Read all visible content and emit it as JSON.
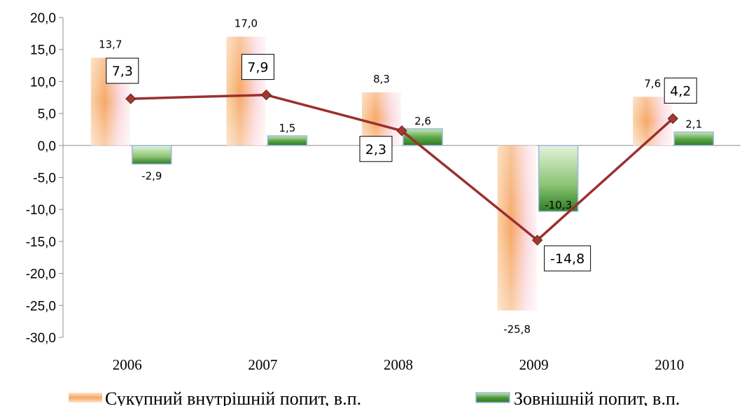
{
  "chart_data": {
    "type": "bar",
    "categories": [
      "2006",
      "2007",
      "2008",
      "2009",
      "2010"
    ],
    "ylim": [
      -30,
      20
    ],
    "yticks": [
      "20,0",
      "15,0",
      "10,0",
      "5,0",
      "0,0",
      "-5,0",
      "-10,0",
      "-15,0",
      "-20,0",
      "-25,0",
      "-30,0"
    ],
    "ytick_values": [
      20,
      15,
      10,
      5,
      0,
      -5,
      -10,
      -15,
      -20,
      -25,
      -30
    ],
    "series": [
      {
        "name": "Сукупний внутрішній попит, в.п.",
        "kind": "bar",
        "values": [
          13.7,
          17.0,
          8.3,
          -25.8,
          7.6
        ],
        "labels": [
          "13,7",
          "17,0",
          "8,3",
          "-25,8",
          "7,6"
        ],
        "color": "#f4a460"
      },
      {
        "name": "Зовнішній попит, в.п.",
        "kind": "bar",
        "values": [
          -2.9,
          1.5,
          2.6,
          -10.3,
          2.1
        ],
        "labels": [
          "-2,9",
          "1,5",
          "2,6",
          "-10,3",
          "2,1"
        ],
        "color": "#3a8a2a"
      },
      {
        "kind": "line",
        "values": [
          7.3,
          7.9,
          2.3,
          -14.8,
          4.2
        ],
        "labels": [
          "7,3",
          "7,9",
          "2,3",
          "-14,8",
          "4,2"
        ],
        "color": "#9b3030"
      }
    ],
    "grid": false,
    "legend_position": "bottom"
  }
}
